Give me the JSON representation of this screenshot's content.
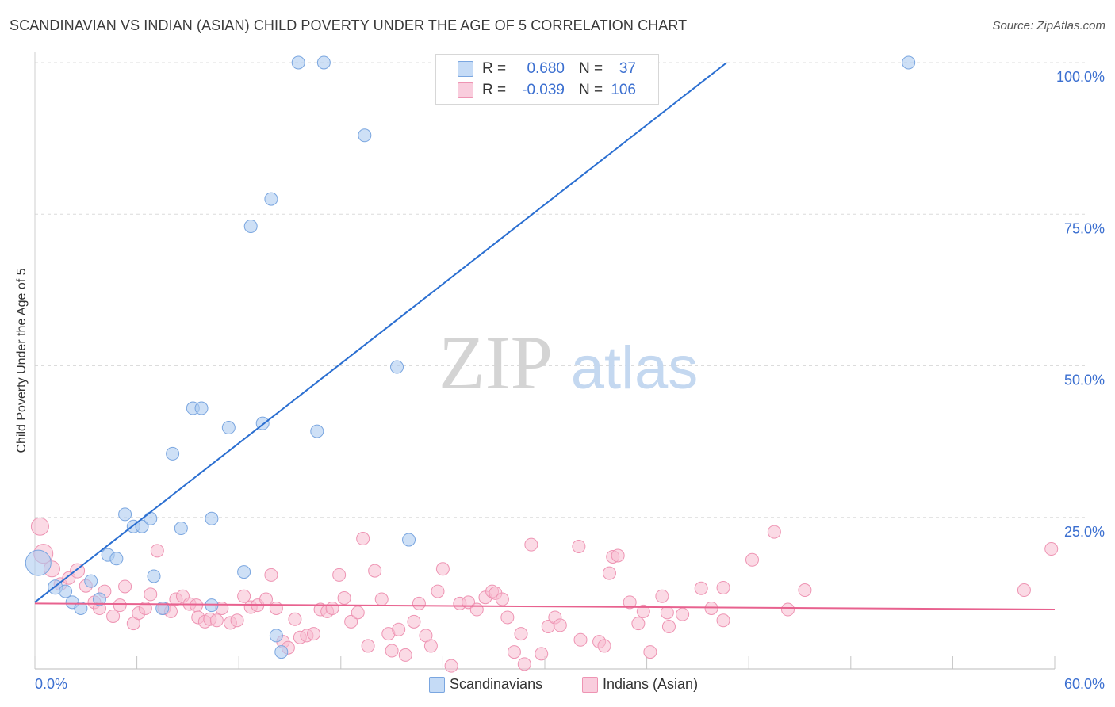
{
  "title": "SCANDINAVIAN VS INDIAN (ASIAN) CHILD POVERTY UNDER THE AGE OF 5 CORRELATION CHART",
  "source": "Source: ZipAtlas.com",
  "watermark": {
    "zip": "ZIP",
    "atlas": "atlas"
  },
  "colors": {
    "blue_fill": "#aecbf0",
    "blue_stroke": "#7aa6e0",
    "blue_line": "#2b6fd1",
    "pink_fill": "#f7bcd0",
    "pink_stroke": "#ee94b3",
    "pink_line": "#e8628f",
    "axis_text": "#3b6fd0",
    "grid": "#dcdcdc"
  },
  "legend": {
    "rows": [
      {
        "r_label": "R =",
        "r_value": "0.680",
        "n_label": "N =",
        "n_value": "37"
      },
      {
        "r_label": "R =",
        "r_value": "-0.039",
        "n_label": "N =",
        "n_value": "106"
      }
    ]
  },
  "bottom_legend": {
    "items": [
      "Scandinavians",
      "Indians (Asian)"
    ]
  },
  "chart_data": {
    "type": "scatter",
    "title": "SCANDINAVIAN VS INDIAN (ASIAN) CHILD POVERTY UNDER THE AGE OF 5 CORRELATION CHART",
    "xlabel": "",
    "ylabel": "Child Poverty Under the Age of 5",
    "xlim": [
      0,
      60
    ],
    "ylim": [
      0,
      100
    ],
    "x_tick_labels": [
      "0.0%",
      "60.0%"
    ],
    "y_tick_labels": [
      "100.0%",
      "75.0%",
      "50.0%",
      "25.0%"
    ],
    "y_ticks": [
      100,
      75,
      50,
      25
    ],
    "grid": true,
    "legend_position": "top-center",
    "series": [
      {
        "name": "Scandinavians",
        "color": "#aecbf0",
        "r": 0.68,
        "n": 37,
        "trend": {
          "x": [
            0,
            40.7
          ],
          "y": [
            11.0,
            100.0
          ]
        },
        "points": [
          [
            0.2,
            17.5,
            16
          ],
          [
            1.2,
            13.5,
            9
          ],
          [
            1.8,
            12.8,
            8
          ],
          [
            2.2,
            11.0,
            8
          ],
          [
            2.7,
            10.0,
            8
          ],
          [
            3.3,
            14.5,
            8
          ],
          [
            3.8,
            11.5,
            8
          ],
          [
            4.3,
            18.8,
            8
          ],
          [
            4.8,
            18.2,
            8
          ],
          [
            5.3,
            25.5,
            8
          ],
          [
            5.8,
            23.5,
            8
          ],
          [
            6.3,
            23.5,
            8
          ],
          [
            6.8,
            24.8,
            8
          ],
          [
            7.0,
            15.3,
            8
          ],
          [
            7.5,
            10.0,
            8
          ],
          [
            8.1,
            35.5,
            8
          ],
          [
            8.6,
            23.2,
            8
          ],
          [
            9.3,
            43.0,
            8
          ],
          [
            9.8,
            43.0,
            8
          ],
          [
            10.4,
            24.8,
            8
          ],
          [
            10.4,
            10.5,
            8
          ],
          [
            11.4,
            39.8,
            8
          ],
          [
            12.3,
            16.0,
            8
          ],
          [
            12.7,
            73.0,
            8
          ],
          [
            13.4,
            40.5,
            8
          ],
          [
            13.9,
            77.5,
            8
          ],
          [
            14.2,
            5.5,
            8
          ],
          [
            14.5,
            2.8,
            8
          ],
          [
            15.5,
            100.0,
            8
          ],
          [
            16.6,
            39.2,
            8
          ],
          [
            17.0,
            100.0,
            8
          ],
          [
            19.4,
            88.0,
            8
          ],
          [
            21.3,
            49.8,
            8
          ],
          [
            22.0,
            21.3,
            8
          ],
          [
            51.4,
            100.0,
            8
          ]
        ]
      },
      {
        "name": "Indians (Asian)",
        "color": "#f7bcd0",
        "r": -0.039,
        "n": 106,
        "trend": {
          "x": [
            0,
            60
          ],
          "y": [
            10.8,
            9.8
          ]
        },
        "points": [
          [
            0.3,
            23.5,
            11
          ],
          [
            0.5,
            19.0,
            12
          ],
          [
            1.0,
            16.5,
            10
          ],
          [
            1.5,
            14.0,
            8
          ],
          [
            2.0,
            15.0,
            8
          ],
          [
            2.5,
            16.2,
            9
          ],
          [
            3.0,
            13.7,
            8
          ],
          [
            3.5,
            11.0,
            8
          ],
          [
            3.8,
            10.0,
            8
          ],
          [
            4.1,
            12.8,
            8
          ],
          [
            4.6,
            8.7,
            8
          ],
          [
            5.0,
            10.5,
            8
          ],
          [
            5.3,
            13.6,
            8
          ],
          [
            5.8,
            7.5,
            8
          ],
          [
            6.1,
            9.2,
            8
          ],
          [
            6.5,
            10.0,
            8
          ],
          [
            6.8,
            12.3,
            8
          ],
          [
            7.2,
            19.5,
            8
          ],
          [
            7.6,
            10.0,
            8
          ],
          [
            8.0,
            9.5,
            8
          ],
          [
            8.3,
            11.5,
            8
          ],
          [
            8.7,
            12.0,
            8
          ],
          [
            9.1,
            10.7,
            8
          ],
          [
            9.5,
            10.5,
            8
          ],
          [
            9.6,
            8.5,
            8
          ],
          [
            10.0,
            7.8,
            8
          ],
          [
            10.3,
            8.2,
            8
          ],
          [
            10.7,
            8.0,
            8
          ],
          [
            11.0,
            10.0,
            8
          ],
          [
            11.5,
            7.6,
            8
          ],
          [
            11.9,
            8.0,
            8
          ],
          [
            12.3,
            12.0,
            8
          ],
          [
            12.7,
            10.2,
            8
          ],
          [
            13.1,
            10.5,
            8
          ],
          [
            13.6,
            11.5,
            8
          ],
          [
            13.9,
            15.5,
            8
          ],
          [
            14.2,
            10.0,
            8
          ],
          [
            14.6,
            4.5,
            8
          ],
          [
            14.9,
            3.5,
            8
          ],
          [
            15.3,
            8.2,
            8
          ],
          [
            15.6,
            5.2,
            8
          ],
          [
            16.0,
            5.5,
            8
          ],
          [
            16.4,
            5.8,
            8
          ],
          [
            16.8,
            9.8,
            8
          ],
          [
            17.2,
            9.5,
            8
          ],
          [
            17.5,
            10.0,
            8
          ],
          [
            17.9,
            15.5,
            8
          ],
          [
            18.2,
            11.7,
            8
          ],
          [
            18.6,
            7.8,
            8
          ],
          [
            19.0,
            9.3,
            8
          ],
          [
            19.3,
            21.5,
            8
          ],
          [
            19.6,
            3.8,
            8
          ],
          [
            20.0,
            16.2,
            8
          ],
          [
            20.4,
            11.5,
            8
          ],
          [
            20.8,
            5.8,
            8
          ],
          [
            21.0,
            3.0,
            8
          ],
          [
            21.4,
            6.5,
            8
          ],
          [
            21.8,
            2.3,
            8
          ],
          [
            22.3,
            7.8,
            8
          ],
          [
            22.6,
            10.8,
            8
          ],
          [
            23.0,
            5.5,
            8
          ],
          [
            23.3,
            3.8,
            8
          ],
          [
            23.7,
            12.8,
            8
          ],
          [
            24.0,
            16.5,
            8
          ],
          [
            24.5,
            0.5,
            8
          ],
          [
            25.0,
            10.8,
            8
          ],
          [
            25.5,
            11.0,
            8
          ],
          [
            26.0,
            9.8,
            8
          ],
          [
            26.5,
            11.8,
            8
          ],
          [
            26.9,
            12.8,
            8
          ],
          [
            27.1,
            12.5,
            8
          ],
          [
            27.5,
            11.5,
            8
          ],
          [
            27.8,
            8.5,
            8
          ],
          [
            28.2,
            2.8,
            8
          ],
          [
            28.6,
            5.8,
            8
          ],
          [
            28.8,
            0.8,
            8
          ],
          [
            29.2,
            20.5,
            8
          ],
          [
            29.8,
            2.5,
            8
          ],
          [
            30.2,
            7.0,
            8
          ],
          [
            30.6,
            8.5,
            8
          ],
          [
            30.9,
            7.2,
            8
          ],
          [
            32.0,
            20.2,
            8
          ],
          [
            32.1,
            4.8,
            8
          ],
          [
            33.2,
            4.5,
            8
          ],
          [
            33.5,
            3.8,
            8
          ],
          [
            33.8,
            15.8,
            8
          ],
          [
            34.0,
            18.5,
            8
          ],
          [
            34.3,
            18.7,
            8
          ],
          [
            35.0,
            11.0,
            8
          ],
          [
            35.5,
            7.5,
            8
          ],
          [
            35.8,
            9.5,
            8
          ],
          [
            36.2,
            2.8,
            8
          ],
          [
            36.9,
            12.0,
            8
          ],
          [
            37.2,
            9.3,
            8
          ],
          [
            37.3,
            7.0,
            8
          ],
          [
            38.1,
            9.0,
            8
          ],
          [
            39.2,
            13.3,
            8
          ],
          [
            39.8,
            10.0,
            8
          ],
          [
            40.5,
            13.4,
            8
          ],
          [
            40.5,
            8.0,
            8
          ],
          [
            42.2,
            18.0,
            8
          ],
          [
            43.5,
            22.6,
            8
          ],
          [
            44.3,
            9.8,
            8
          ],
          [
            45.3,
            13.0,
            8
          ],
          [
            58.2,
            13.0,
            8
          ],
          [
            59.8,
            19.8,
            8
          ]
        ]
      }
    ]
  }
}
